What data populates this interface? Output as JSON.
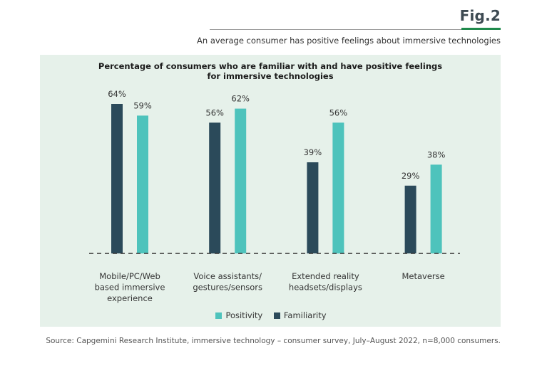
{
  "header": {
    "fig_label": "Fig.2",
    "subtitle": "An average consumer has positive feelings about immersive technologies"
  },
  "colors": {
    "familiarity": "#2b4a5a",
    "positivity": "#4ec3bc",
    "panel_bg": "#e6f1ea",
    "accent": "#1f8a4c"
  },
  "chart_data": {
    "type": "bar",
    "title": "Percentage of consumers who are familiar with and have positive feelings for immersive technologies",
    "title_lines": [
      "Percentage of consumers who are familiar with and have positive feelings",
      "for immersive technologies"
    ],
    "categories": [
      "Mobile/PC/Web based immersive experience",
      "Voice assistants/ gestures/sensors",
      "Extended reality headsets/displays",
      "Metaverse"
    ],
    "category_lines": [
      [
        "Mobile/PC/Web",
        "based immersive",
        "experience"
      ],
      [
        "Voice assistants/",
        "gestures/sensors"
      ],
      [
        "Extended reality",
        "headsets/displays"
      ],
      [
        "Metaverse"
      ]
    ],
    "series": [
      {
        "name": "Familiarity",
        "values": [
          64,
          56,
          39,
          29
        ],
        "labels": [
          "64%",
          "56%",
          "39%",
          "29%"
        ]
      },
      {
        "name": "Positivity",
        "values": [
          59,
          62,
          56,
          38
        ],
        "labels": [
          "59%",
          "62%",
          "56%",
          "38%"
        ]
      }
    ],
    "xlabel": "",
    "ylabel": "",
    "unit": "%",
    "ylim": [
      0,
      70
    ],
    "grid": false,
    "legend": {
      "placement": "bottom",
      "entries": [
        "Positivity",
        "Familiarity"
      ]
    }
  },
  "source": "Source: Capgemini Research Institute, immersive technology – consumer survey, July–August 2022, n=8,000 consumers."
}
